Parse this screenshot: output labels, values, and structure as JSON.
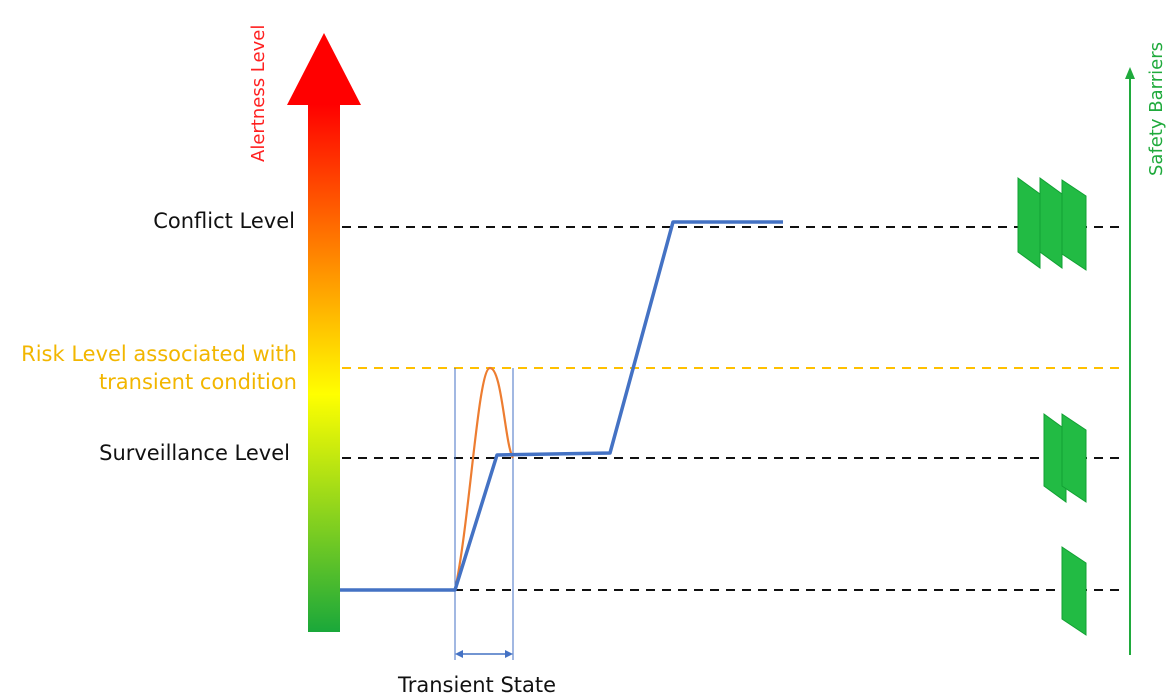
{
  "labels": {
    "y_axis": "Alertness Level",
    "right_axis": "Safety Barriers",
    "conflict_level": "Conflict Level",
    "risk_level_line1": "Risk Level associated with",
    "risk_level_line2": "transient condition",
    "surveillance_level": "Surveillance Level",
    "transient_state": "Transient State"
  },
  "colors": {
    "gradient_top": "#ff0000",
    "gradient_mid": "#ffff00",
    "gradient_bottom": "#1aa83a",
    "main_curve": "#4472c4",
    "transient_curve": "#ed7d31",
    "risk_line": "#ffc000",
    "barrier": "#22bb44",
    "barrier_edge": "#11a033",
    "safety_axis": "#1faa3c"
  }
}
